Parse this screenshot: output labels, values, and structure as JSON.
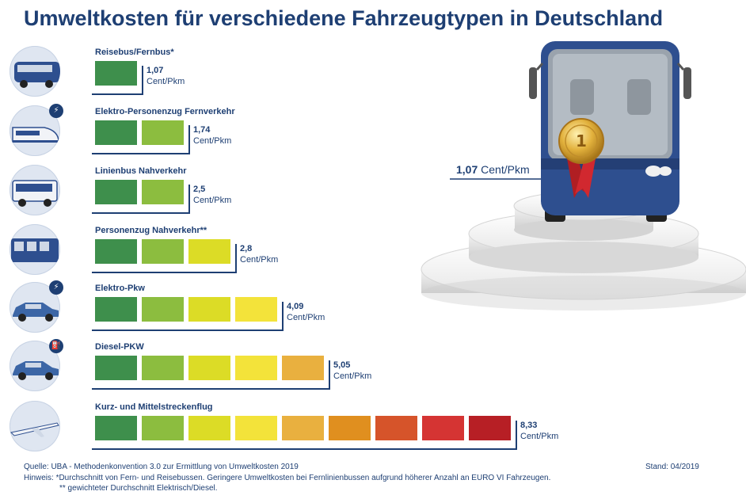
{
  "title": "Umweltkosten für verschiedene Fahrzeugtypen in Deutschland",
  "winner_label": {
    "value": "1,07",
    "unit": "Cent/Pkm"
  },
  "medal_text": "1",
  "colors": {
    "title": "#1e3f73",
    "segments": [
      "#3e8f4c",
      "#8cbd3f",
      "#dcdc26",
      "#f3e33a",
      "#e9b03f",
      "#e08f1f",
      "#d6542a",
      "#d53433",
      "#b71f25"
    ]
  },
  "chart_data": {
    "type": "bar",
    "title": "Umweltkosten für verschiedene Fahrzeugtypen in Deutschland",
    "unit": "Cent/Pkm",
    "categories": [
      "Reisebus/Fernbus*",
      "Elektro-Personenzug Fernverkehr",
      "Linienbus Nahverkehr",
      "Personenzug Nahverkehr**",
      "Elektro-Pkw",
      "Diesel-PKW",
      "Kurz- und Mittelstreckenflug"
    ],
    "values": [
      1.07,
      1.74,
      2.5,
      2.8,
      4.09,
      5.05,
      8.33
    ],
    "value_labels": [
      "1,07",
      "1,74",
      "2,5",
      "2,8",
      "4,09",
      "5,05",
      "8,33"
    ],
    "segments": [
      1,
      2,
      2,
      3,
      4,
      5,
      9
    ],
    "icons": [
      "bus-icon",
      "train-icon",
      "city-bus-icon",
      "regional-train-icon",
      "car-icon",
      "car-icon",
      "airplane-icon"
    ],
    "badges": [
      "",
      "plug-icon",
      "",
      "",
      "plug-icon",
      "fuel-pump-icon",
      ""
    ]
  },
  "footer": {
    "source": "Quelle: UBA - Methodenkonvention 3.0 zur Ermittlung von Umweltkosten 2019",
    "note1": "Hinweis: *Durchschnitt von Fern- und Reisebussen. Geringere Umweltkosten bei Fernlinienbussen aufgrund höherer Anzahl an EURO VI Fahrzeugen.",
    "note2": "** gewichteter Durchschnitt Elektrisch/Diesel.",
    "date": "Stand: 04/2019"
  }
}
